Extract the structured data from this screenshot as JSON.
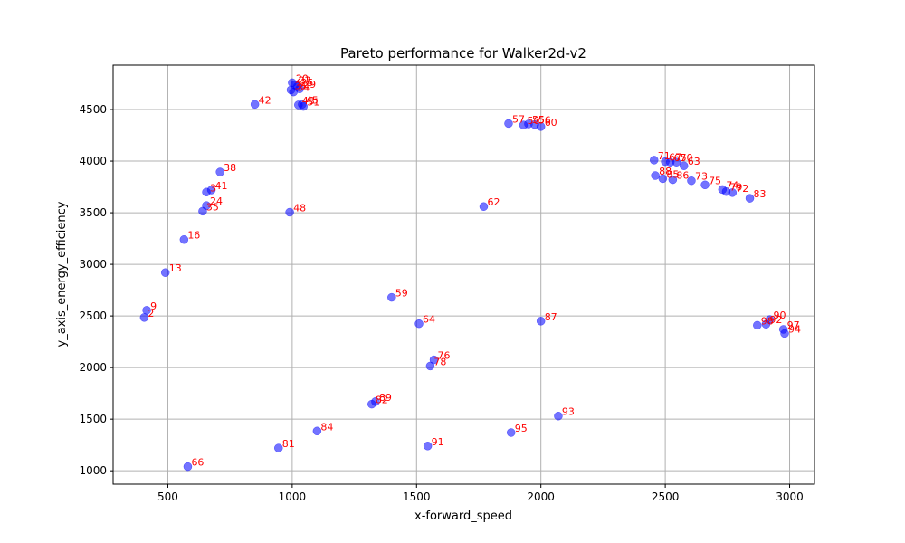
{
  "chart_data": {
    "type": "scatter",
    "title": "Pareto performance for Walker2d-v2",
    "xlabel": "x-forward_speed",
    "ylabel": "y_axis_energy_efficiency",
    "xlim": [
      280,
      3100
    ],
    "ylim": [
      870,
      4930
    ],
    "xticks": [
      500,
      1000,
      1500,
      2000,
      2500,
      3000
    ],
    "yticks": [
      1000,
      1500,
      2000,
      2500,
      3000,
      3500,
      4000,
      4500
    ],
    "grid": true,
    "point_color": "#0000ff",
    "label_color": "#ff0000",
    "points": [
      {
        "label": "9",
        "x": 415,
        "y": 2555
      },
      {
        "label": "2",
        "x": 405,
        "y": 2485
      },
      {
        "label": "13",
        "x": 490,
        "y": 2920
      },
      {
        "label": "16",
        "x": 565,
        "y": 3240
      },
      {
        "label": "35",
        "x": 640,
        "y": 3515
      },
      {
        "label": "24",
        "x": 655,
        "y": 3570
      },
      {
        "label": "3",
        "x": 655,
        "y": 3700
      },
      {
        "label": "41",
        "x": 675,
        "y": 3720
      },
      {
        "label": "38",
        "x": 710,
        "y": 3895
      },
      {
        "label": "42",
        "x": 850,
        "y": 4550
      },
      {
        "label": "48",
        "x": 990,
        "y": 3505
      },
      {
        "label": "66",
        "x": 580,
        "y": 1040
      },
      {
        "label": "81",
        "x": 945,
        "y": 1220
      },
      {
        "label": "84",
        "x": 1100,
        "y": 1385
      },
      {
        "label": "82",
        "x": 1320,
        "y": 1645
      },
      {
        "label": "89",
        "x": 1335,
        "y": 1670
      },
      {
        "label": "59",
        "x": 1400,
        "y": 2680
      },
      {
        "label": "64",
        "x": 1510,
        "y": 2425
      },
      {
        "label": "76",
        "x": 1570,
        "y": 2075
      },
      {
        "label": "78",
        "x": 1555,
        "y": 2015
      },
      {
        "label": "91",
        "x": 1545,
        "y": 1240
      },
      {
        "label": "95",
        "x": 1880,
        "y": 1370
      },
      {
        "label": "93",
        "x": 2070,
        "y": 1530
      },
      {
        "label": "87",
        "x": 2000,
        "y": 2450
      },
      {
        "label": "62",
        "x": 1770,
        "y": 3560
      },
      {
        "label": "57",
        "x": 1870,
        "y": 4365
      },
      {
        "label": "50",
        "x": 1930,
        "y": 4350
      },
      {
        "label": "55",
        "x": 1950,
        "y": 4360
      },
      {
        "label": "56",
        "x": 1975,
        "y": 4355
      },
      {
        "label": "60",
        "x": 2000,
        "y": 4335
      },
      {
        "label": "71",
        "x": 2455,
        "y": 4010
      },
      {
        "label": "67",
        "x": 2500,
        "y": 3995
      },
      {
        "label": "65",
        "x": 2520,
        "y": 3990
      },
      {
        "label": "70",
        "x": 2545,
        "y": 3990
      },
      {
        "label": "63",
        "x": 2575,
        "y": 3955
      },
      {
        "label": "88",
        "x": 2460,
        "y": 3860
      },
      {
        "label": "85",
        "x": 2490,
        "y": 3830
      },
      {
        "label": "86",
        "x": 2530,
        "y": 3820
      },
      {
        "label": "73",
        "x": 2605,
        "y": 3810
      },
      {
        "label": "75",
        "x": 2660,
        "y": 3770
      },
      {
        "label": "74",
        "x": 2730,
        "y": 3725
      },
      {
        "label": "79",
        "x": 2745,
        "y": 3705
      },
      {
        "label": "72",
        "x": 2770,
        "y": 3695
      },
      {
        "label": "83",
        "x": 2840,
        "y": 3640
      },
      {
        "label": "90",
        "x": 2920,
        "y": 2465
      },
      {
        "label": "98",
        "x": 2870,
        "y": 2410
      },
      {
        "label": "92",
        "x": 2905,
        "y": 2420
      },
      {
        "label": "97",
        "x": 2975,
        "y": 2370
      },
      {
        "label": "94",
        "x": 2980,
        "y": 2330
      },
      {
        "label": "20",
        "x": 1000,
        "y": 4760
      },
      {
        "label": "22",
        "x": 1010,
        "y": 4740
      },
      {
        "label": "25",
        "x": 1020,
        "y": 4720
      },
      {
        "label": "29",
        "x": 1030,
        "y": 4700
      },
      {
        "label": "31",
        "x": 995,
        "y": 4690
      },
      {
        "label": "34",
        "x": 1005,
        "y": 4670
      },
      {
        "label": "43",
        "x": 1025,
        "y": 4545
      },
      {
        "label": "45",
        "x": 1040,
        "y": 4550
      },
      {
        "label": "51",
        "x": 1045,
        "y": 4530
      }
    ]
  }
}
